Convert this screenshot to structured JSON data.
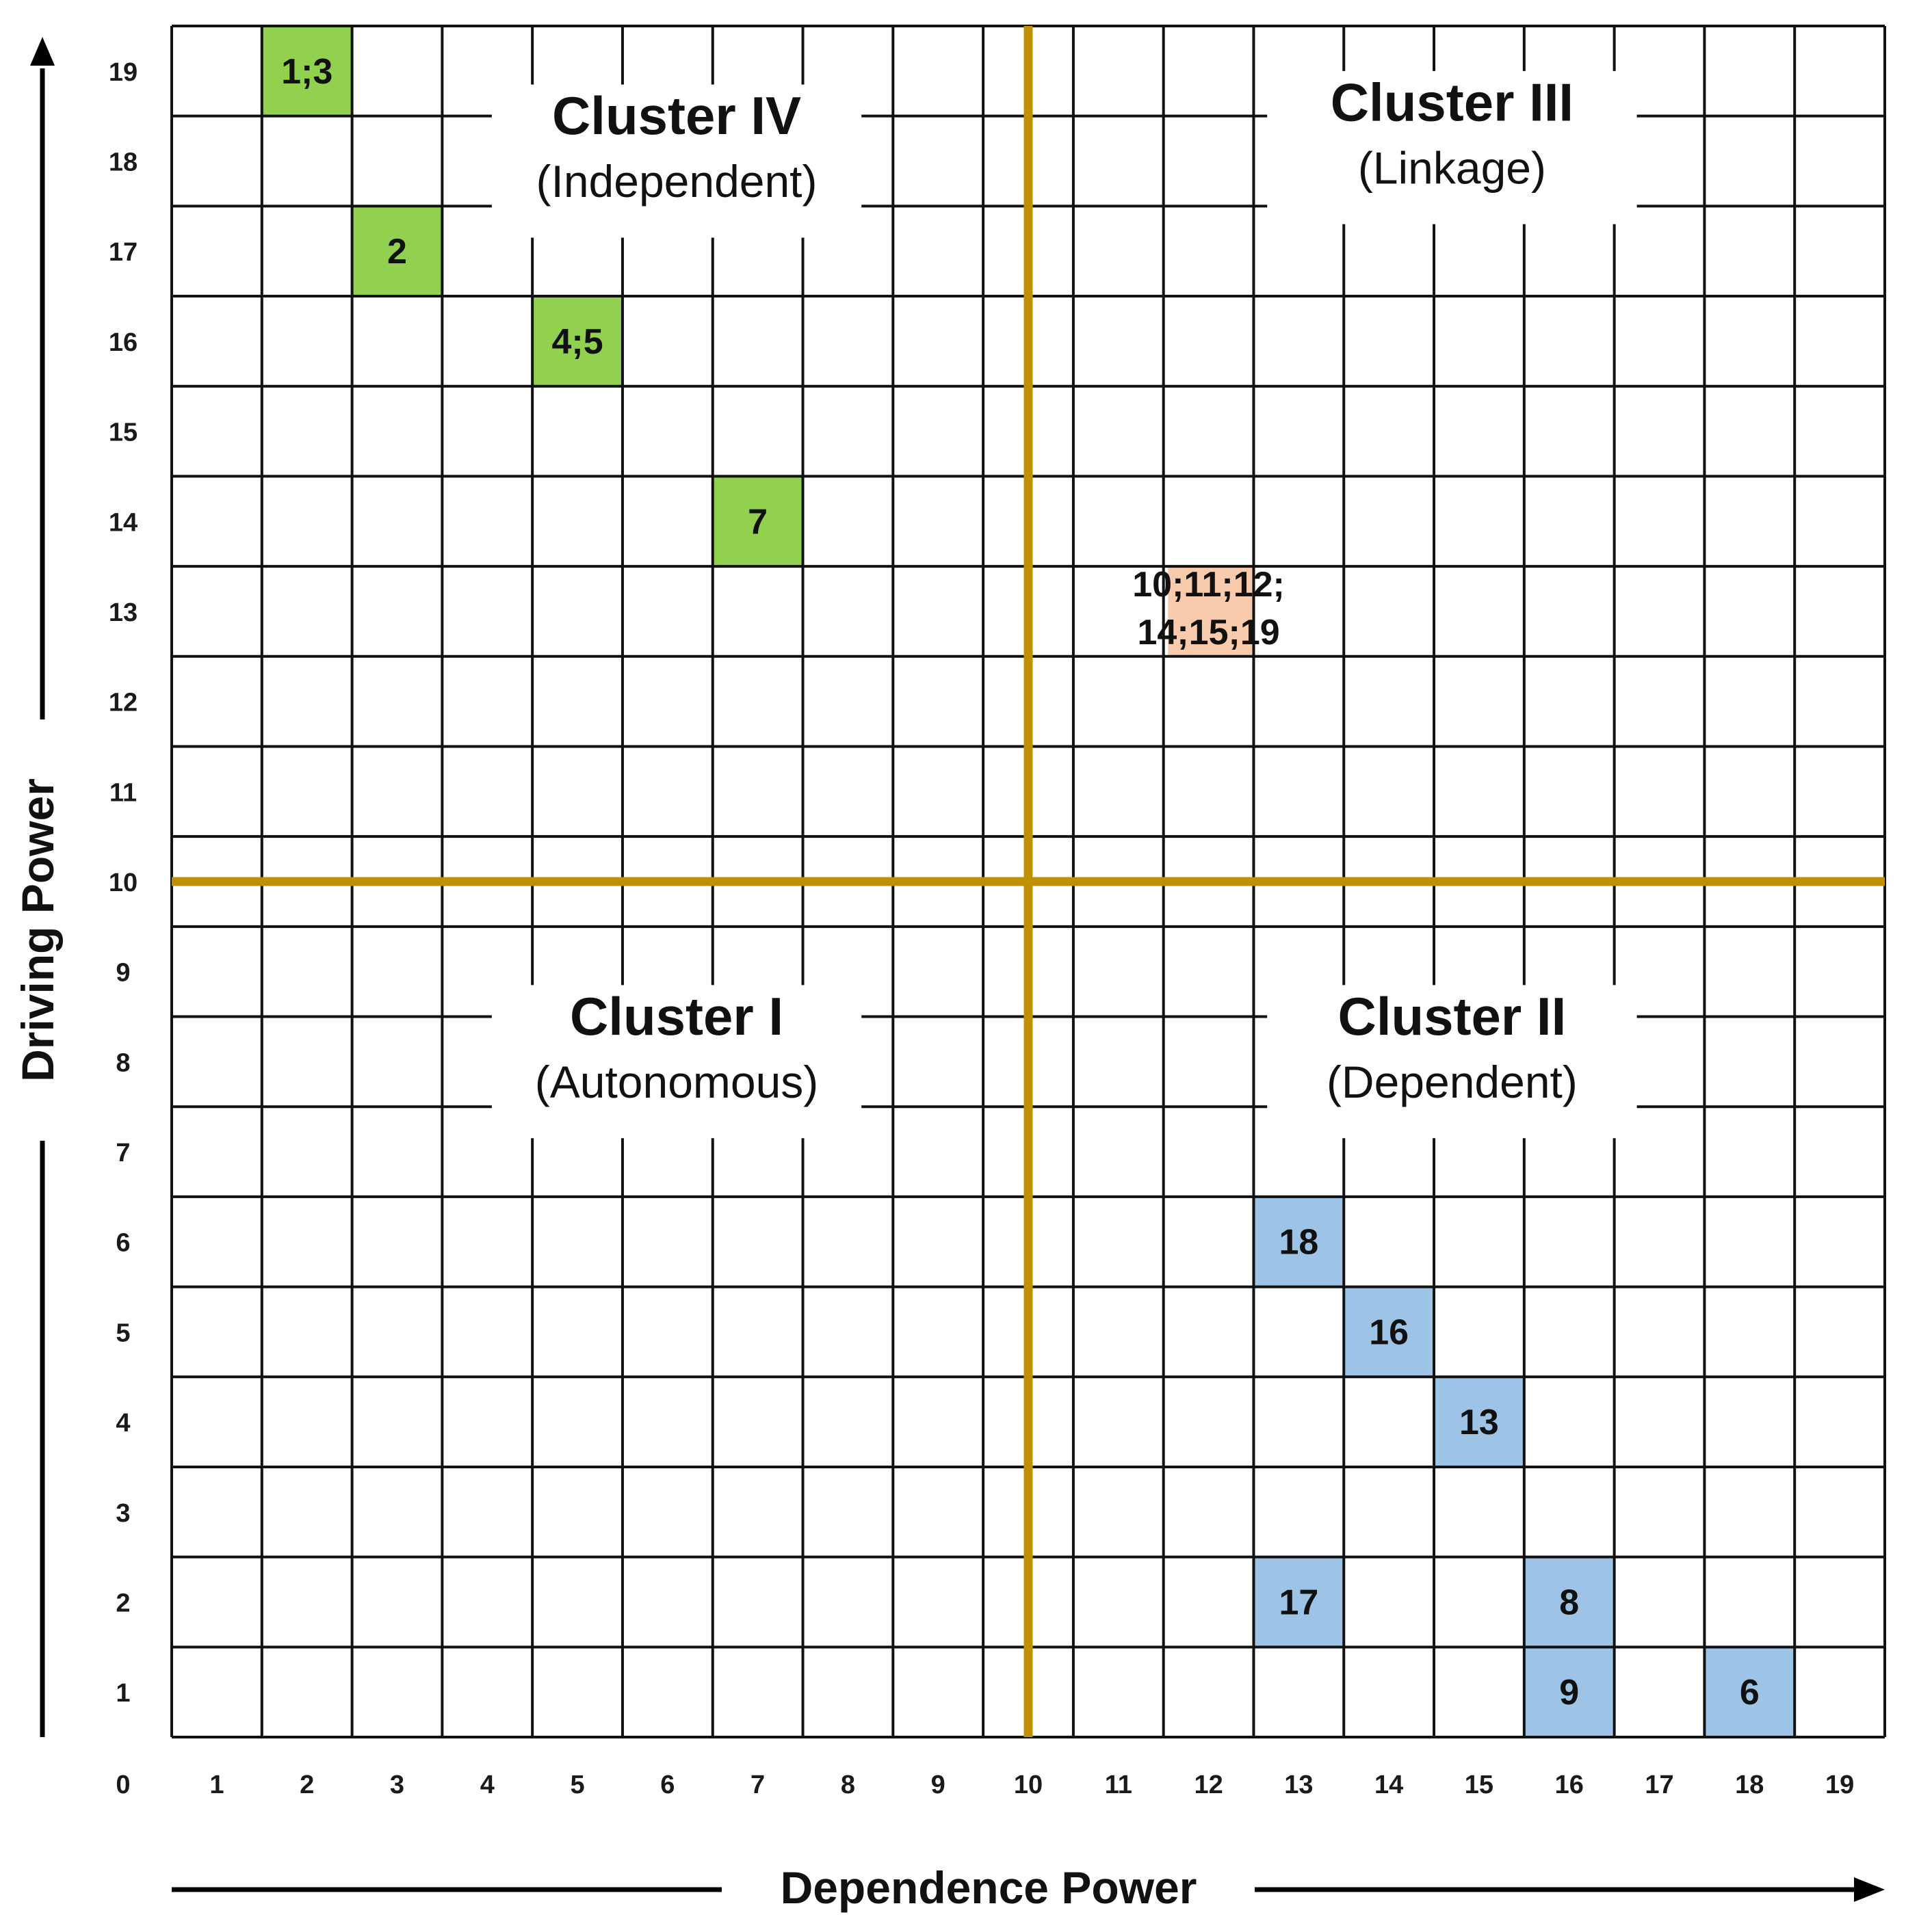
{
  "chart_data": {
    "type": "scatter",
    "title": "",
    "xlabel": "Dependence Power",
    "ylabel": "Driving Power",
    "xlim": [
      0,
      19
    ],
    "ylim": [
      0,
      19
    ],
    "x_ticks": [
      "0",
      "1",
      "2",
      "3",
      "4",
      "5",
      "6",
      "7",
      "8",
      "9",
      "10",
      "11",
      "12",
      "13",
      "14",
      "15",
      "16",
      "17",
      "18",
      "19"
    ],
    "y_ticks": [
      "1",
      "2",
      "3",
      "4",
      "5",
      "6",
      "7",
      "8",
      "9",
      "10",
      "11",
      "12",
      "13",
      "14",
      "15",
      "16",
      "17",
      "18",
      "19"
    ],
    "grid": true,
    "divider_at": 9.5,
    "divider_color": "#BF9000",
    "clusters": [
      {
        "name": "Cluster IV",
        "subtitle": "(Independent)",
        "quadrant": "top-left"
      },
      {
        "name": "Cluster III",
        "subtitle": "(Linkage)",
        "quadrant": "top-right"
      },
      {
        "name": "Cluster I",
        "subtitle": "(Autonomous)",
        "quadrant": "bottom-left"
      },
      {
        "name": "Cluster II",
        "subtitle": "(Dependent)",
        "quadrant": "bottom-right"
      }
    ],
    "points": [
      {
        "label": "1;3",
        "x": 2,
        "y": 19,
        "group": "independent"
      },
      {
        "label": "2",
        "x": 3,
        "y": 17,
        "group": "independent"
      },
      {
        "label": "4;5",
        "x": 5,
        "y": 16,
        "group": "independent"
      },
      {
        "label": "7",
        "x": 7,
        "y": 14,
        "group": "independent"
      },
      {
        "label": "10;11;12;\n14;15;19",
        "x": 12,
        "y": 13,
        "group": "linkage"
      },
      {
        "label": "18",
        "x": 13,
        "y": 6,
        "group": "dependent"
      },
      {
        "label": "16",
        "x": 14,
        "y": 5,
        "group": "dependent"
      },
      {
        "label": "13",
        "x": 15,
        "y": 4,
        "group": "dependent"
      },
      {
        "label": "17",
        "x": 13,
        "y": 2,
        "group": "dependent"
      },
      {
        "label": "8",
        "x": 16,
        "y": 2,
        "group": "dependent"
      },
      {
        "label": "9",
        "x": 16,
        "y": 1,
        "group": "dependent"
      },
      {
        "label": "6",
        "x": 18,
        "y": 1,
        "group": "dependent"
      }
    ],
    "group_colors": {
      "independent": "#92D050",
      "linkage": "#F8CBAD",
      "dependent": "#9DC3E6"
    }
  }
}
